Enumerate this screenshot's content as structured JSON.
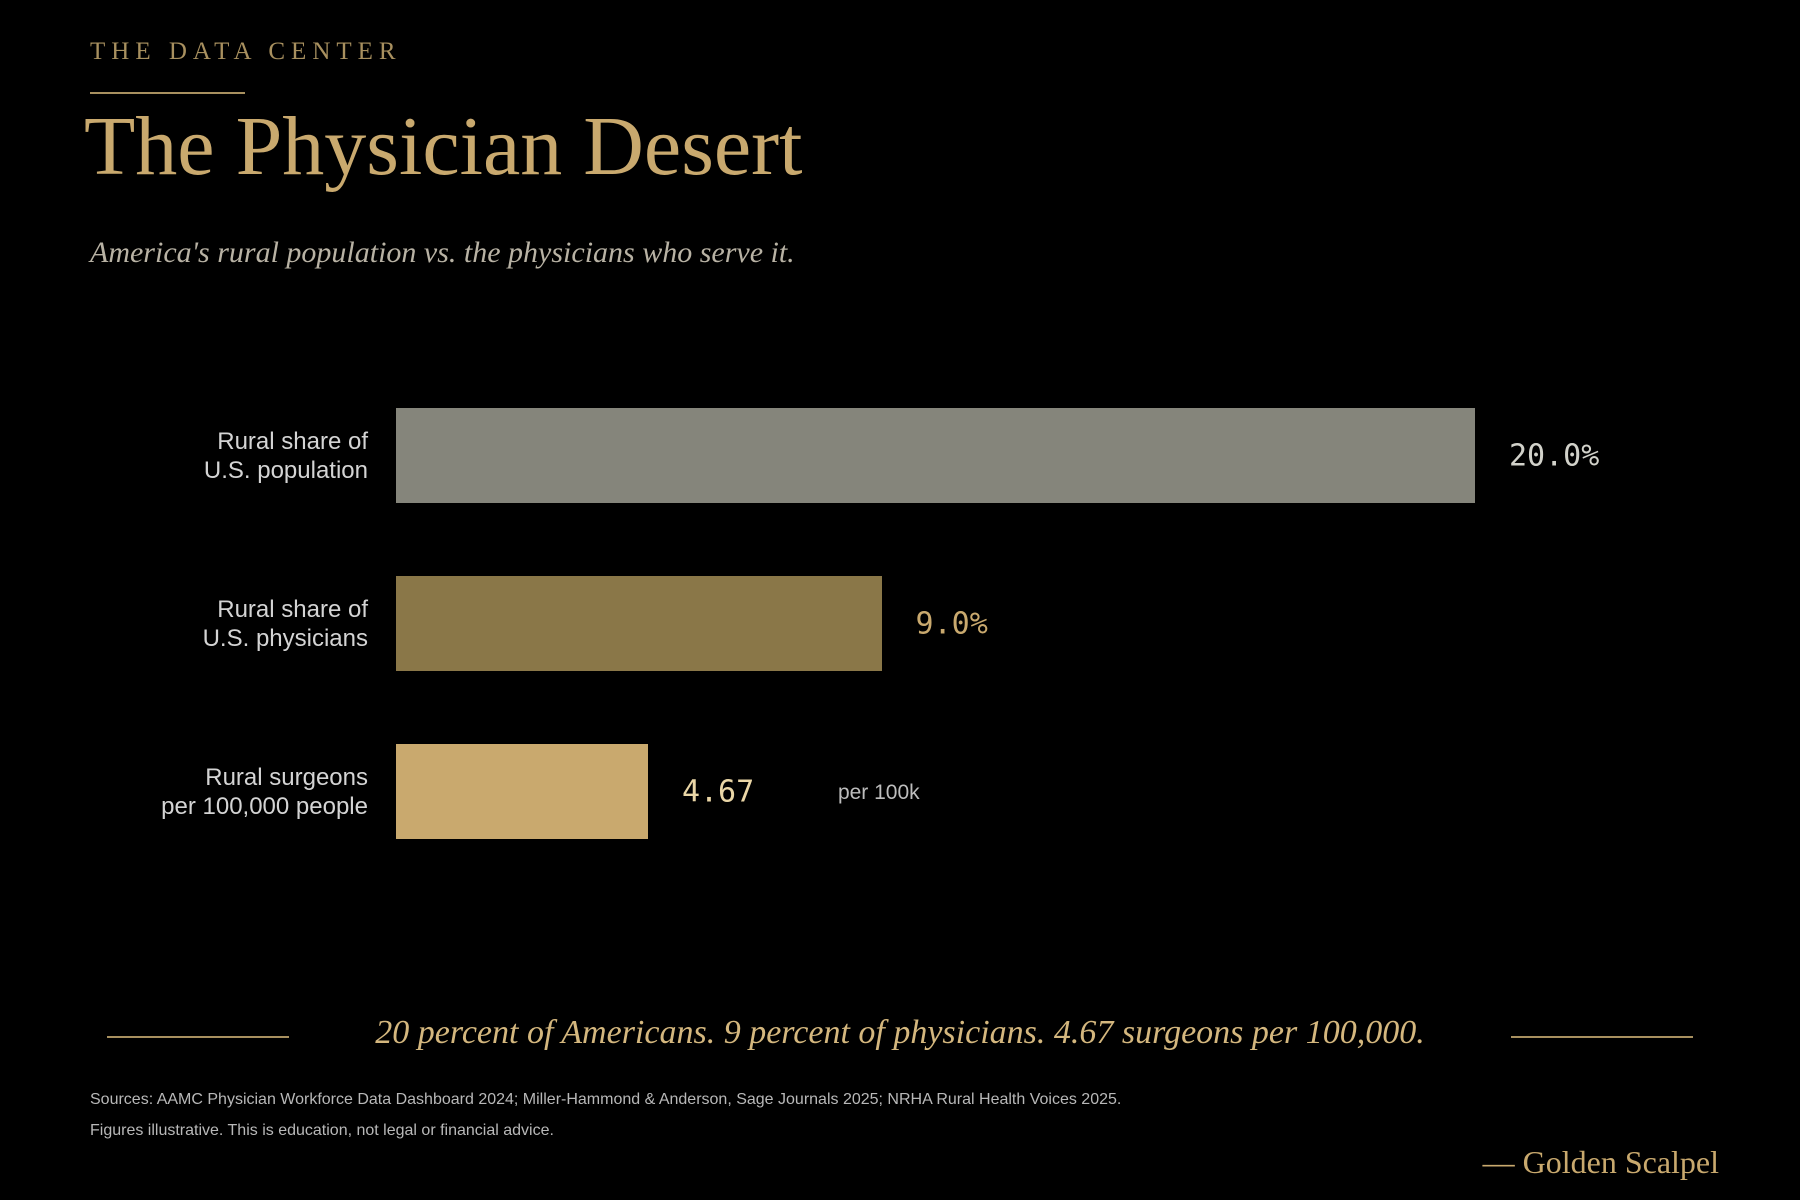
{
  "kicker": "THE DATA CENTER",
  "chart_data": {
    "type": "bar",
    "orientation": "horizontal",
    "title": "The Physician Desert",
    "subtitle": "America's rural population vs. the physicians who serve it.",
    "categories": [
      "Rural share of\nU.S. population",
      "Rural share of\nU.S. physicians",
      "Rural surgeons\nper 100,000 people"
    ],
    "values": [
      20.0,
      9.0,
      4.67
    ],
    "value_labels": [
      "20.0%",
      "9.0%",
      "4.67"
    ],
    "value_suffixes": [
      null,
      null,
      "per 100k"
    ],
    "colors": [
      "#85857b",
      "#8a7748",
      "#c9a96e"
    ],
    "value_label_colors": [
      "#d2d2ca",
      "#c9a96e",
      "#ead6a6"
    ],
    "xlim": [
      0,
      20
    ]
  },
  "footer": {
    "quote": "20 percent of Americans. 9 percent of physicians. 4.67 surgeons per 100,000.",
    "sources": [
      "Sources: AAMC Physician Workforce Data Dashboard 2024; Miller-Hammond & Anderson, Sage Journals 2025; NRHA Rural Health Voices 2025.",
      "Figures illustrative. This is education, not legal or financial advice."
    ],
    "signature": "— Golden Scalpel"
  }
}
